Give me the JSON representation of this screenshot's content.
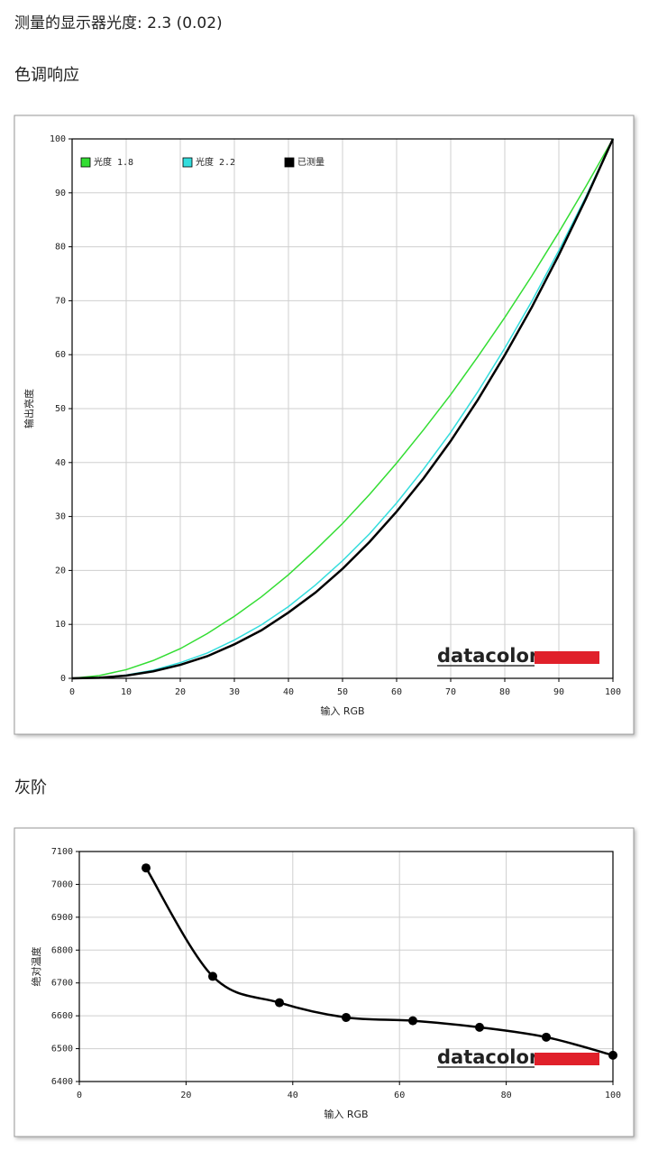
{
  "summary": "测量的显示器光度: 2.3 (0.02)",
  "chart_data": [
    {
      "type": "line",
      "heading": "色调响应",
      "x": [
        0,
        5,
        10,
        15,
        20,
        25,
        30,
        35,
        40,
        45,
        50,
        55,
        60,
        65,
        70,
        75,
        80,
        85,
        90,
        95,
        100
      ],
      "series": [
        {
          "name": "光度 1.8",
          "color": "#33dd33",
          "values": [
            0,
            0.5,
            1.6,
            3.3,
            5.5,
            8.3,
            11.5,
            15.1,
            19.2,
            23.8,
            28.7,
            34.1,
            39.9,
            46.1,
            52.6,
            59.6,
            66.9,
            74.6,
            82.7,
            91.2,
            100
          ]
        },
        {
          "name": "光度 2.2",
          "color": "#33dddd",
          "values": [
            0,
            0.1,
            0.6,
            1.5,
            2.9,
            4.7,
            7.1,
            9.9,
            13.3,
            17.3,
            21.8,
            26.8,
            32.5,
            38.8,
            45.6,
            53.1,
            61.2,
            69.9,
            79.3,
            89.3,
            100
          ]
        },
        {
          "name": "已测量",
          "color": "#000000",
          "values": [
            0,
            0.1,
            0.5,
            1.3,
            2.5,
            4.1,
            6.3,
            8.9,
            12.2,
            15.9,
            20.3,
            25.3,
            30.9,
            37.1,
            44.0,
            51.6,
            59.9,
            68.8,
            78.5,
            88.9,
            100
          ]
        }
      ],
      "xlim": [
        0,
        100
      ],
      "ylim": [
        0,
        100
      ],
      "xticks": [
        0,
        10,
        20,
        30,
        40,
        50,
        60,
        70,
        80,
        90,
        100
      ],
      "yticks": [
        0,
        10,
        20,
        30,
        40,
        50,
        60,
        70,
        80,
        90,
        100
      ],
      "x_label": "输入 RGB",
      "y_label": "输出亮度",
      "grid": true,
      "legend": "upper left",
      "logo": "datacolor"
    },
    {
      "type": "line",
      "heading": "灰阶",
      "x": [
        12.5,
        25,
        37.5,
        50,
        62.5,
        75,
        87.5,
        100
      ],
      "series": [
        {
          "color": "#000000",
          "values": [
            7050,
            6720,
            6640,
            6595,
            6585,
            6565,
            6535,
            6480
          ]
        }
      ],
      "xlim": [
        0,
        100
      ],
      "ylim": [
        6400,
        7100
      ],
      "xticks": [
        0,
        20,
        40,
        60,
        80,
        100
      ],
      "yticks": [
        6400,
        6500,
        6600,
        6700,
        6800,
        6900,
        7000,
        7100
      ],
      "x_label": "输入 RGB",
      "y_label": "绝对温度",
      "grid": true,
      "markers": true,
      "smooth": true,
      "logo": "datacolor"
    }
  ]
}
